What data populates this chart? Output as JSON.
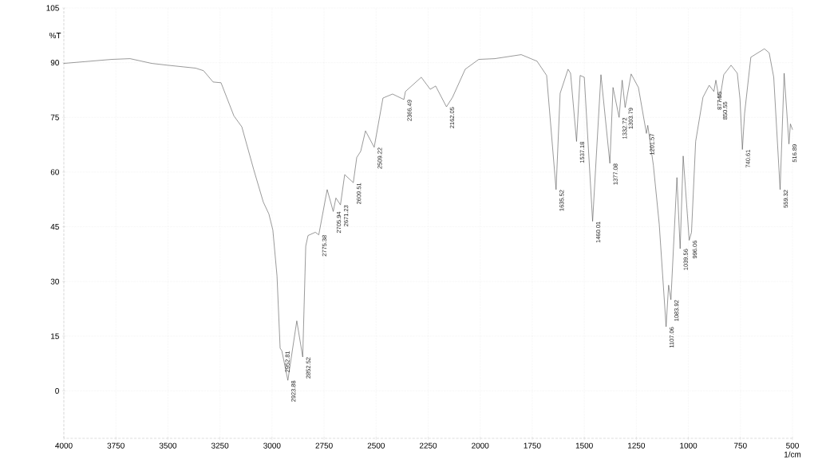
{
  "chart_data": {
    "type": "line",
    "xlabel": "1/cm",
    "ylabel": "%T",
    "x": [
      4000,
      3770,
      3682,
      3578,
      3502,
      3367,
      3329,
      3283,
      3245,
      3183,
      3145,
      3088,
      3042,
      3015,
      2996,
      2976,
      2961,
      2952.81,
      2923.88,
      2881,
      2852.52,
      2838,
      2827,
      2792,
      2775.38,
      2735,
      2705.94,
      2693,
      2671.23,
      2651,
      2609.51,
      2593,
      2574,
      2551,
      2509.22,
      2467,
      2421,
      2366.49,
      2359,
      2283,
      2240,
      2214,
      2162.05,
      2133,
      2072,
      2007,
      1930,
      1803,
      1727,
      1681,
      1635.52,
      1616,
      1578,
      1566,
      1537.18,
      1520,
      1500,
      1460.01,
      1420,
      1377.08,
      1362,
      1332.72,
      1318,
      1303.79,
      1275,
      1240,
      1201.57,
      1195,
      1168,
      1140,
      1107.06,
      1095,
      1083.92,
      1055,
      1039.56,
      1025,
      996.06,
      985,
      965,
      930,
      900,
      877.55,
      868,
      850.55,
      830,
      795,
      765,
      752,
      740.61,
      730,
      700,
      635,
      612,
      590,
      559.32,
      540,
      516.89,
      510,
      500
    ],
    "series": [
      {
        "color": "#555555",
        "values": [
          89.8,
          90.9,
          91.1,
          89.8,
          89.3,
          88.5,
          87.8,
          84.7,
          84.5,
          75.4,
          72.4,
          60.7,
          51.8,
          48.5,
          44.1,
          31.5,
          11.7,
          11.0,
          2.9,
          19.2,
          9.3,
          39.7,
          42.6,
          43.5,
          42.8,
          55.2,
          49.2,
          52.9,
          51.0,
          59.3,
          57.1,
          64.0,
          65.7,
          71.3,
          66.8,
          80.3,
          81.4,
          79.9,
          82.1,
          86.0,
          82.7,
          83.6,
          77.9,
          80.5,
          88.2,
          90.9,
          91.1,
          92.2,
          90.4,
          86.5,
          55.2,
          81.6,
          88.2,
          87.1,
          68.4,
          86.5,
          86.0,
          46.5,
          86.7,
          62.4,
          83.2,
          75.0,
          85.2,
          77.7,
          86.9,
          83.2,
          70.6,
          72.8,
          61.8,
          45.7,
          17.6,
          29.0,
          25.0,
          58.5,
          39.0,
          64.4,
          41.3,
          43.5,
          68.4,
          80.5,
          83.8,
          82.1,
          85.2,
          79.4,
          86.7,
          89.3,
          87.1,
          80.0,
          66.2,
          76.1,
          91.5,
          93.8,
          92.7,
          86.0,
          55.2,
          87.1,
          67.7,
          73.2,
          71.7
        ]
      }
    ],
    "xlim": [
      4000,
      500
    ],
    "ylim": [
      -13,
      105
    ],
    "xticks": [
      4000,
      3750,
      3500,
      3250,
      3000,
      2750,
      2500,
      2250,
      2000,
      1750,
      1500,
      1250,
      1000,
      750,
      500
    ],
    "yticks": [
      0,
      15,
      30,
      45,
      60,
      75,
      90,
      105
    ],
    "grid": true,
    "annotations": [
      {
        "text": "2952.81",
        "x": 2952.81,
        "y": 11.0
      },
      {
        "text": "2923.88",
        "x": 2923.88,
        "y": 2.9
      },
      {
        "text": "2852.52",
        "x": 2852.52,
        "y": 9.3
      },
      {
        "text": "2775.38",
        "x": 2775.38,
        "y": 42.8
      },
      {
        "text": "2705.94",
        "x": 2705.94,
        "y": 49.2
      },
      {
        "text": "2671.23",
        "x": 2671.23,
        "y": 51.0
      },
      {
        "text": "2609.51",
        "x": 2609.51,
        "y": 57.1
      },
      {
        "text": "2509.22",
        "x": 2509.22,
        "y": 66.8
      },
      {
        "text": "2366.49",
        "x": 2366.49,
        "y": 79.9
      },
      {
        "text": "2162.05",
        "x": 2162.05,
        "y": 77.9
      },
      {
        "text": "1635.52",
        "x": 1635.52,
        "y": 55.2
      },
      {
        "text": "1537.18",
        "x": 1537.18,
        "y": 68.4
      },
      {
        "text": "1460.01",
        "x": 1460.01,
        "y": 46.5
      },
      {
        "text": "1377.08",
        "x": 1377.08,
        "y": 62.4
      },
      {
        "text": "1332.72",
        "x": 1332.72,
        "y": 75.0
      },
      {
        "text": "1303.79",
        "x": 1303.79,
        "y": 77.7
      },
      {
        "text": "1201.57",
        "x": 1201.57,
        "y": 70.6
      },
      {
        "text": "1107.06",
        "x": 1107.06,
        "y": 17.6
      },
      {
        "text": "1083.92",
        "x": 1083.92,
        "y": 25.0
      },
      {
        "text": "1039.56",
        "x": 1039.56,
        "y": 39.0
      },
      {
        "text": "996.06",
        "x": 996.06,
        "y": 41.3
      },
      {
        "text": "877.55",
        "x": 877.55,
        "y": 82.1
      },
      {
        "text": "850.55",
        "x": 850.55,
        "y": 79.4
      },
      {
        "text": "740.61",
        "x": 740.61,
        "y": 66.2
      },
      {
        "text": "559.32",
        "x": 559.32,
        "y": 55.2
      },
      {
        "text": "516.89",
        "x": 516.89,
        "y": 67.7
      }
    ]
  }
}
